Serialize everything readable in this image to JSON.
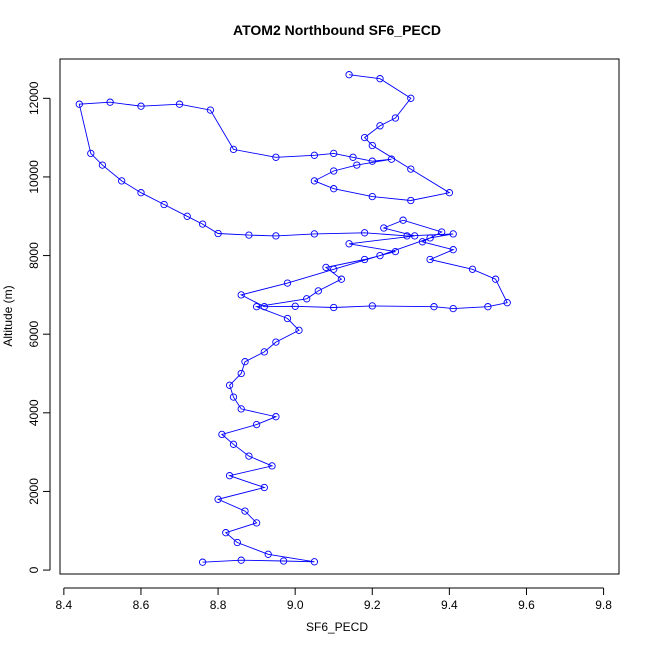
{
  "chart_data": {
    "type": "line",
    "title": "ATOM2 Northbound SF6_PECD",
    "xlabel": "SF6_PECD",
    "ylabel": "Altitude (m)",
    "xlim": [
      8.39,
      9.84
    ],
    "ylim": [
      -100,
      13000
    ],
    "x_ticks": [
      8.4,
      8.6,
      8.8,
      9.0,
      9.2,
      9.4,
      9.6,
      9.8
    ],
    "x_tick_labels": [
      "8.4",
      "8.6",
      "8.8",
      "9.0",
      "9.2",
      "9.4",
      "9.6",
      "9.8"
    ],
    "y_ticks": [
      0,
      2000,
      4000,
      6000,
      8000,
      10000,
      12000
    ],
    "y_tick_labels": [
      "0",
      "2000",
      "4000",
      "6000",
      "8000",
      "10000",
      "12000"
    ],
    "grid": false,
    "legend": "none",
    "series_color": "#0000ff",
    "series": [
      {
        "x": [
          8.76,
          8.86,
          8.97,
          9.05,
          8.93,
          8.85,
          8.82,
          8.9,
          8.87,
          8.8,
          8.92,
          8.83,
          8.94,
          8.88,
          8.84,
          8.81,
          8.9,
          8.95,
          8.86,
          8.84,
          8.83,
          8.86,
          8.87,
          8.92,
          8.95,
          9.01,
          8.98,
          8.9,
          9.03,
          9.06,
          9.12,
          9.08,
          9.18,
          9.26,
          9.14,
          9.31,
          9.23,
          9.28,
          9.38,
          9.33,
          9.41,
          9.35,
          9.46,
          9.52,
          9.55,
          9.5,
          9.41,
          9.36,
          9.2,
          9.1,
          9.0,
          8.92,
          8.86,
          8.98,
          9.1,
          9.22,
          9.35,
          9.41,
          9.29,
          9.18,
          9.05,
          8.95,
          8.88,
          8.8,
          8.76,
          8.72,
          8.66,
          8.6,
          8.55,
          8.5,
          8.47,
          8.44,
          8.52,
          8.6,
          8.7,
          8.78,
          8.84,
          8.95,
          9.05,
          9.1,
          9.15,
          9.2,
          9.25,
          9.16,
          9.1,
          9.05,
          9.1,
          9.2,
          9.3,
          9.4,
          9.3,
          9.2,
          9.18,
          9.22,
          9.26,
          9.3,
          9.22,
          9.14
        ],
        "y": [
          200,
          250,
          230,
          210,
          400,
          700,
          950,
          1200,
          1500,
          1800,
          2100,
          2400,
          2650,
          2900,
          3200,
          3450,
          3700,
          3900,
          4100,
          4400,
          4700,
          5000,
          5300,
          5550,
          5800,
          6100,
          6400,
          6700,
          6900,
          7100,
          7400,
          7700,
          7900,
          8100,
          8300,
          8500,
          8700,
          8900,
          8600,
          8350,
          8150,
          7900,
          7650,
          7400,
          6800,
          6700,
          6650,
          6700,
          6720,
          6680,
          6710,
          6700,
          7000,
          7300,
          7650,
          8000,
          8450,
          8550,
          8500,
          8580,
          8550,
          8500,
          8520,
          8560,
          8800,
          9000,
          9300,
          9600,
          9900,
          10300,
          10600,
          11850,
          11900,
          11800,
          11850,
          11700,
          10700,
          10500,
          10550,
          10600,
          10500,
          10400,
          10450,
          10300,
          10150,
          9900,
          9700,
          9500,
          9400,
          9600,
          10200,
          10800,
          11000,
          11300,
          11500,
          12000,
          12500,
          12600
        ]
      }
    ]
  }
}
